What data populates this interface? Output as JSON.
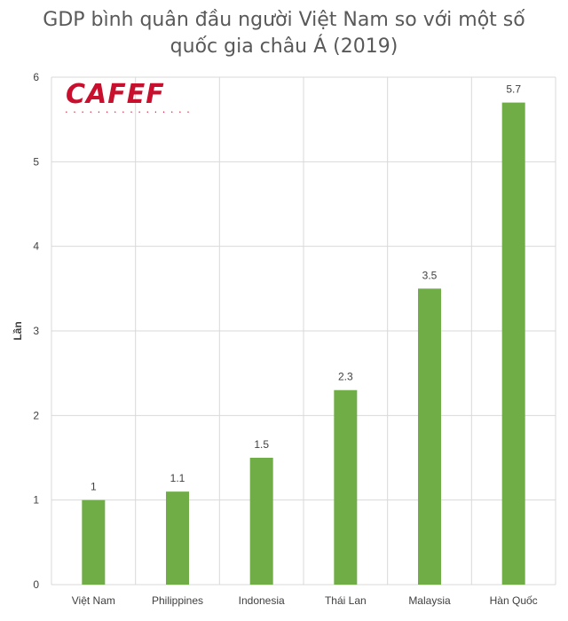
{
  "chart_data": {
    "type": "bar",
    "title_lines": [
      "GDP bình quân đầu người Việt Nam so với một số",
      "quốc gia châu Á (2019)"
    ],
    "xlabel": "",
    "ylabel": "Lần",
    "categories": [
      "Việt Nam",
      "Philippines",
      "Indonesia",
      "Thái Lan",
      "Malaysia",
      "Hàn Quốc"
    ],
    "values": [
      1,
      1.1,
      1.5,
      2.3,
      3.5,
      5.7
    ],
    "data_labels": [
      "1",
      "1.1",
      "1.5",
      "2.3",
      "3.5",
      "5.7"
    ],
    "ylim": [
      0,
      6
    ],
    "yticks": [
      0,
      1,
      2,
      3,
      4,
      5,
      6
    ],
    "grid": true,
    "legend": "none",
    "bar_color": "#70ad47",
    "grid_color": "#d9d9d9"
  },
  "watermark": {
    "text": "CAFEF",
    "color": "#c8102e"
  }
}
